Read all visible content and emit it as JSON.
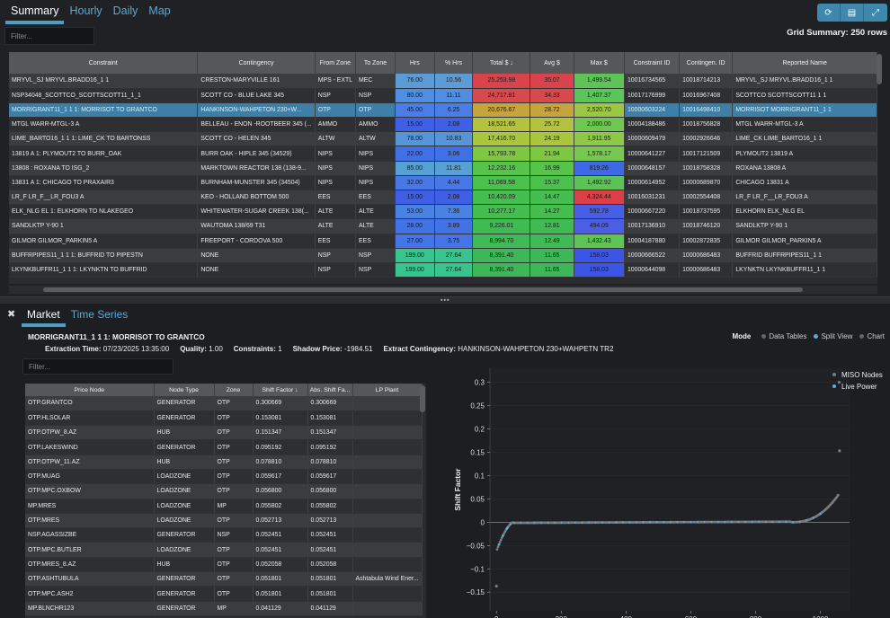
{
  "top_tabs": [
    "Summary",
    "Hourly",
    "Daily",
    "Map"
  ],
  "top_buttons": [
    {
      "icon": "refresh-icon",
      "glyph": "⟳"
    },
    {
      "icon": "document-icon",
      "glyph": "▤"
    },
    {
      "icon": "expand-icon",
      "glyph": "⤢"
    }
  ],
  "filter_placeholder": "Filter...",
  "grid_summary": "Grid Summary: 250 rows",
  "summary_columns": [
    "Constraint",
    "Contingency",
    "From Zone",
    "To Zone",
    "Hrs",
    "% Hrs",
    "Total $ ↓",
    "Avg $",
    "Max $",
    "Constraint ID",
    "Contingen. ID",
    "Reported Name"
  ],
  "summary_rows": [
    [
      "MRYVL_SJ MRYVL.BRADD16_1 1",
      "CRESTON-MARYVILLE 161",
      "MPS - EXTL",
      "MEC",
      "76.00",
      "10.56",
      "25,253.98",
      "35.07",
      "1,499.54",
      "10016734565",
      "10018714213",
      "MRYVL_SJ MRYVL.BRADD16_1 1"
    ],
    [
      "NSP34048_SCOTTCO_SCOTTSCOTT11_1_1",
      "SCOTT CO - BLUE LAKE 345",
      "NSP",
      "NSP",
      "80.00",
      "11.11",
      "24,717.81",
      "34.33",
      "1,407.37",
      "10017176999",
      "10016967408",
      "SCOTTCO SCOTTSCOTT11 1 1"
    ],
    [
      "MORRIGRANT11_1 1 1: MORRISOT TO GRANTCO",
      "HANKINSON-WAHPETON 230+W...",
      "OTP",
      "OTP",
      "45.00",
      "6.25",
      "20,676.67",
      "28.72",
      "2,520.70",
      "10000603224",
      "10016498410",
      "MORRISOT MORRIGRANT11_1 1"
    ],
    [
      "MTGL WARR-MTGL-3 A",
      "BELLEAU - ENON -ROOTBEER 345 (...",
      "AMMO",
      "AMMO",
      "15.00",
      "2.08",
      "18,521.65",
      "25.72",
      "2,000.00",
      "10004188486",
      "10018756828",
      "MTGL WARR-MTGL-3 A"
    ],
    [
      "LIME_BARTO16_1 1 1: LIME_CK TO BARTONSS",
      "SCOTT CO - HELEN 345",
      "ALTW",
      "ALTW",
      "78.00",
      "10.83",
      "17,416.70",
      "24.19",
      "1,911.95",
      "10000609479",
      "10002926646",
      "LIME_CK LIME_BARTO16_1 1"
    ],
    [
      "13819 A 1: PLYMOUT2 TO BURR_OAK",
      "BURR OAK - HIPLE 345 (34529)",
      "NIPS",
      "NIPS",
      "22.00",
      "3.06",
      "15,793.78",
      "21.94",
      "1,578.17",
      "10000641227",
      "10017121509",
      "PLYMOUT2 13819 A"
    ],
    [
      "13808 : ROXANA TO ISG_2",
      "MARKTOWN REACTOR 138 (138-9...",
      "NIPS",
      "NIPS",
      "85.00",
      "11.81",
      "12,232.16",
      "16.99",
      "819.26",
      "10000648157",
      "10018758328",
      "ROXANA 13808 A"
    ],
    [
      "13831 A 1: CHICAGO TO PRAXAIR3",
      "BURNHAM-MUNSTER 345 (34504)",
      "NIPS",
      "NIPS",
      "32.00",
      "4.44",
      "11,069.58",
      "15.37",
      "1,492.92",
      "10000614952",
      "10000689870",
      "CHICAGO 13831 A"
    ],
    [
      "LR_F LR_F__LR_FOU3 A",
      "KEO - HOLLAND BOTTOM 500",
      "EES",
      "EES",
      "15.00",
      "2.08",
      "10,420.09",
      "14.47",
      "4,324.44",
      "10016031231",
      "10002554408",
      "LR_F LR_F__LR_FOU3 A"
    ],
    [
      "ELK_NLG EL 1: ELKHORN TO NLAKEGEO",
      "WHITEWATER-SUGAR CREEK 138(...",
      "ALTE",
      "ALTE",
      "53.00",
      "7.36",
      "10,277.17",
      "14.27",
      "592.78",
      "10000667220",
      "10018737595",
      "ELKHORN ELK_NLG EL"
    ],
    [
      "SANDLKTP Y-90 1",
      "WAUTOMA 138/69 T31",
      "ALTE",
      "ALTE",
      "28.00",
      "3.89",
      "9,226.01",
      "12.81",
      "494.09",
      "10017136910",
      "10018746120",
      "SANDLKTP Y-90 1"
    ],
    [
      "GILMOR GILMOR_PARKIN5 A",
      "FREEPORT - CORDOVA 500",
      "EES",
      "EES",
      "27.00",
      "3.75",
      "8,994.70",
      "12.49",
      "1,432.43",
      "10004187880",
      "10002872835",
      "GILMOR GILMOR_PARKIN5 A"
    ],
    [
      "BUFFRPIPES11_1 1 1: BUFFRID TO PIPESTN",
      "NONE",
      "NSP",
      "NSP",
      "199.00",
      "27.64",
      "8,391.40",
      "11.65",
      "158.03",
      "10000666522",
      "10000686483",
      "BUFFRID BUFFRPIPES11_1 1"
    ],
    [
      "LKYNKBUFFR11_1 1 1: LKYNKTN TO BUFFRID",
      "NONE",
      "NSP",
      "NSP",
      "199.00",
      "27.64",
      "8,391.40",
      "11.65",
      "158.03",
      "10000644098",
      "10000686483",
      "LKYNKTN LKYNKBUFFR11_1 1"
    ]
  ],
  "cell_colors": {
    "hrs": [
      "#5b9bd6",
      "#4f8ee0",
      "#4a7ee6",
      "#3f5fe4",
      "#5595d8",
      "#4070e6",
      "#56a0d3",
      "#4878e6",
      "#3f5fe4",
      "#4a82e3",
      "#4372e7",
      "#4474e6",
      "#38c48e",
      "#38c48e"
    ],
    "pct": [
      "#5b9bd6",
      "#4f8ee0",
      "#4a7ee6",
      "#3f5fe4",
      "#5595d8",
      "#4070e6",
      "#56a0d3",
      "#4878e6",
      "#3f5fe4",
      "#4a82e3",
      "#4372e7",
      "#4474e6",
      "#38c48e",
      "#38c48e"
    ],
    "total": [
      "#d9444c",
      "#d8494c",
      "#c7a53e",
      "#b3c23f",
      "#aac63f",
      "#7ec743",
      "#56c44a",
      "#4cc04c",
      "#46be4f",
      "#45bd4f",
      "#40bb53",
      "#3fba54",
      "#3db757",
      "#3db757"
    ],
    "avg": [
      "#d9444c",
      "#d8494c",
      "#c7a53e",
      "#b3c23f",
      "#aac63f",
      "#7ec743",
      "#56c44a",
      "#4cc04c",
      "#46be4f",
      "#45bd4f",
      "#40bb53",
      "#3fba54",
      "#3db757",
      "#3db757"
    ],
    "max": [
      "#5fc456",
      "#5ac558",
      "#9bc744",
      "#6fc650",
      "#8dc849",
      "#78c74e",
      "#3f68e6",
      "#5cc456",
      "#dd3f47",
      "#465fe6",
      "#4a5ee6",
      "#5fc456",
      "#3b55e6",
      "#3b55e6"
    ]
  },
  "market_tabs": [
    "Market",
    "Time Series"
  ],
  "close_glyph": "✖",
  "market_title": "MORRIGRANT11_1 1 1: MORRISOT TO GRANTCO",
  "market_info": [
    {
      "label": "Extraction Time:",
      "value": "07/23/2025 13:35:00"
    },
    {
      "label": "Quality:",
      "value": "1.00"
    },
    {
      "label": "Constraints:",
      "value": "1"
    },
    {
      "label": "Shadow Price:",
      "value": "-1984.51"
    },
    {
      "label": "Extract Contingency:",
      "value": "HANKINSON-WAHPETON 230+WAHPETN TR2"
    }
  ],
  "mode": {
    "label": "Mode",
    "options": [
      "Data Tables",
      "Split View",
      "Chart"
    ],
    "selected": "Split View"
  },
  "price_columns": [
    "Price Node",
    "Node Type",
    "Zone",
    "Shift Factor ↓",
    "Abs. Shift Fa...",
    "LP Plant"
  ],
  "price_rows": [
    [
      "OTP.GRANTCO",
      "GENERATOR",
      "OTP",
      "0.300669",
      "0.300669",
      ""
    ],
    [
      "OTP.HLSOLAR",
      "GENERATOR",
      "OTP",
      "0.153081",
      "0.153081",
      ""
    ],
    [
      "OTP.OTPW_8.AZ",
      "HUB",
      "OTP",
      "0.151347",
      "0.151347",
      ""
    ],
    [
      "OTP.LAKESWIND",
      "GENERATOR",
      "OTP",
      "0.095192",
      "0.095192",
      ""
    ],
    [
      "OTP.OTPW_11.AZ",
      "HUB",
      "OTP",
      "0.078810",
      "0.078810",
      ""
    ],
    [
      "OTP.MUAG",
      "LOADZONE",
      "OTP",
      "0.059617",
      "0.059617",
      ""
    ],
    [
      "OTP.MPC.OXBOW",
      "LOADZONE",
      "OTP",
      "0.056800",
      "0.056800",
      ""
    ],
    [
      "MP.MRES",
      "LOADZONE",
      "MP",
      "0.055802",
      "0.055802",
      ""
    ],
    [
      "OTP.MRES",
      "LOADZONE",
      "OTP",
      "0.052713",
      "0.052713",
      ""
    ],
    [
      "NSP.AGASSIZBE",
      "GENERATOR",
      "NSP",
      "0.052451",
      "0.052451",
      ""
    ],
    [
      "OTP.MPC.BUTLER",
      "LOADZONE",
      "OTP",
      "0.052451",
      "0.052451",
      ""
    ],
    [
      "OTP.MRES_8.AZ",
      "HUB",
      "OTP",
      "0.052058",
      "0.052058",
      ""
    ],
    [
      "OTP.ASHTUBULA",
      "GENERATOR",
      "OTP",
      "0.051801",
      "0.051801",
      "Ashtabula Wind Ener..."
    ],
    [
      "OTP.MPC.ASH2",
      "GENERATOR",
      "OTP",
      "0.051801",
      "0.051801",
      ""
    ],
    [
      "MP.BLNCHR123",
      "GENERATOR",
      "MP",
      "0.041129",
      "0.041129",
      ""
    ]
  ],
  "chart_data": {
    "type": "scatter",
    "ylabel": "Shift Factor",
    "xlabel": "",
    "xlim": [
      -20,
      1090
    ],
    "ylim": [
      -0.19,
      0.33
    ],
    "xticks": [
      0,
      200,
      400,
      600,
      800,
      1000
    ],
    "yticks": [
      0.3,
      0.25,
      0.2,
      0.15,
      0.1,
      0.05,
      0,
      -0.05,
      -0.1,
      -0.15
    ],
    "ytick_labels": [
      "0.3",
      "0.25",
      "0.2",
      "0.15",
      "0.1",
      "0.05",
      "0",
      "−0.05",
      "−0.1",
      "−0.15"
    ],
    "legend_position": "top-right",
    "series": [
      {
        "name": "MISO Nodes",
        "color": "#7a7c80"
      },
      {
        "name": "Live Power",
        "color": "#5fb0e6"
      }
    ],
    "n_points": 1060,
    "outliers": [
      {
        "x": 0,
        "y": -0.137
      },
      {
        "x": 1058,
        "y": 0.3
      },
      {
        "x": 1059,
        "y": 0.153
      }
    ]
  }
}
